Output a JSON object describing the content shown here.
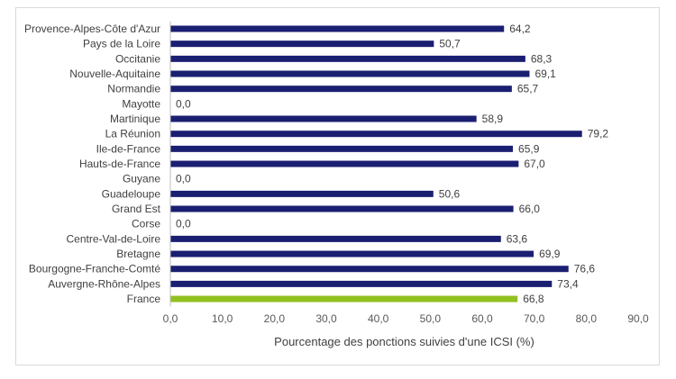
{
  "chart_data": {
    "type": "bar",
    "orientation": "horizontal",
    "categories": [
      "Provence-Alpes-Côte d'Azur",
      "Pays de la Loire",
      "Occitanie",
      "Nouvelle-Aquitaine",
      "Normandie",
      "Mayotte",
      "Martinique",
      "La Réunion",
      "Ile-de-France",
      "Hauts-de-France",
      "Guyane",
      "Guadeloupe",
      "Grand Est",
      "Corse",
      "Centre-Val-de-Loire",
      "Bretagne",
      "Bourgogne-Franche-Comté",
      "Auvergne-Rhône-Alpes",
      "France"
    ],
    "values": [
      64.2,
      50.7,
      68.3,
      69.1,
      65.7,
      0.0,
      58.9,
      79.2,
      65.9,
      67.0,
      0.0,
      50.6,
      66.0,
      0.0,
      63.6,
      69.9,
      76.6,
      73.4,
      66.8
    ],
    "value_labels": [
      "64,2",
      "50,7",
      "68,3",
      "69,1",
      "65,7",
      "0,0",
      "58,9",
      "79,2",
      "65,9",
      "67,0",
      "0,0",
      "50,6",
      "66,0",
      "0,0",
      "63,6",
      "69,9",
      "76,6",
      "73,4",
      "66,8"
    ],
    "xlim": [
      0,
      90
    ],
    "xticks": [
      "0,0",
      "10,0",
      "20,0",
      "30,0",
      "40,0",
      "50,0",
      "60,0",
      "70,0",
      "80,0",
      "90,0"
    ],
    "xlabel": "Pourcentage des ponctions suivies d'une ICSI (%)",
    "ylabel": "",
    "title": "",
    "grid": false,
    "colors": {
      "default": "#1a1f71",
      "highlight": "#92c01f"
    },
    "highlight_category": "France"
  }
}
